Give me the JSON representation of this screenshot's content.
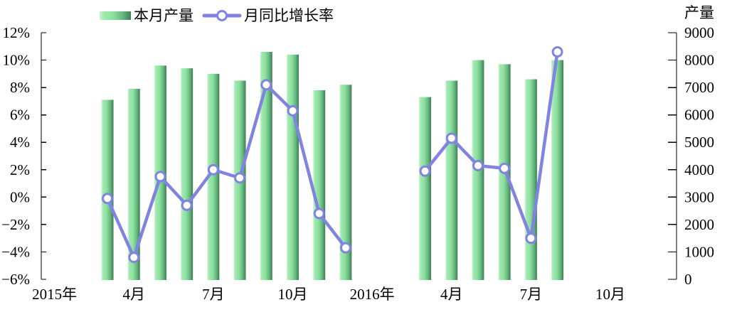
{
  "colors": {
    "bar_light": "#ccf2d2",
    "bar_mid_light": "#9fe9ae",
    "bar_mid": "#8ee1a0",
    "bar_mid_dark": "#68bb80",
    "bar_dark": "#3f7e56",
    "line": "#8183e2",
    "marker_fill": "#ffffff",
    "axis": "#000000",
    "text": "#000000"
  },
  "chart_data": {
    "type": "bar+line combo",
    "title": "",
    "legend": [
      {
        "label": "本月产量",
        "swatch": "bar-gradient"
      },
      {
        "label": "月同比增长率",
        "swatch": "line-marker"
      }
    ],
    "left_axis": {
      "min": -6,
      "max": 12,
      "step": 2,
      "unit": "%",
      "ticks": [
        {
          "label": "12%",
          "value": 12
        },
        {
          "label": "10%",
          "value": 10
        },
        {
          "label": "8%",
          "value": 8
        },
        {
          "label": "6%",
          "value": 6
        },
        {
          "label": "4%",
          "value": 4
        },
        {
          "label": "2%",
          "value": 2
        },
        {
          "label": "0%",
          "value": 0
        },
        {
          "label": "−2%",
          "value": -2
        },
        {
          "label": "−4%",
          "value": -4
        },
        {
          "label": "−6%",
          "value": -6
        }
      ]
    },
    "right_axis": {
      "title": "产量",
      "min": 0,
      "max": 9000,
      "step": 1000,
      "ticks": [
        {
          "label": "9000",
          "value": 9000
        },
        {
          "label": "8000",
          "value": 8000
        },
        {
          "label": "7000",
          "value": 7000
        },
        {
          "label": "6000",
          "value": 6000
        },
        {
          "label": "5000",
          "value": 5000
        },
        {
          "label": "4000",
          "value": 4000
        },
        {
          "label": "3000",
          "value": 3000
        },
        {
          "label": "2000",
          "value": 2000
        },
        {
          "label": "1000",
          "value": 1000
        },
        {
          "label": "0",
          "value": 0
        }
      ]
    },
    "x_axis": {
      "total_months": 24,
      "note": "month_index 0 = 2015年1月 slot, 23 = 2016年12月 slot",
      "ticks": [
        {
          "label": "2015年",
          "month_index": 0
        },
        {
          "label": "4月",
          "month_index": 3
        },
        {
          "label": "7月",
          "month_index": 6
        },
        {
          "label": "10月",
          "month_index": 9
        },
        {
          "label": "2016年",
          "month_index": 12
        },
        {
          "label": "4月",
          "month_index": 15
        },
        {
          "label": "7月",
          "month_index": 18
        },
        {
          "label": "10月",
          "month_index": 21
        }
      ]
    },
    "series": [
      {
        "name": "本月产量",
        "type": "bar",
        "axis": "right",
        "points": [
          {
            "month_index": 2,
            "value": 6550
          },
          {
            "month_index": 3,
            "value": 6950
          },
          {
            "month_index": 4,
            "value": 7800
          },
          {
            "month_index": 5,
            "value": 7700
          },
          {
            "month_index": 6,
            "value": 7500
          },
          {
            "month_index": 7,
            "value": 7250
          },
          {
            "month_index": 8,
            "value": 8300
          },
          {
            "month_index": 9,
            "value": 8200
          },
          {
            "month_index": 10,
            "value": 6900
          },
          {
            "month_index": 11,
            "value": 7100
          },
          {
            "month_index": 14,
            "value": 6650
          },
          {
            "month_index": 15,
            "value": 7250
          },
          {
            "month_index": 16,
            "value": 8000
          },
          {
            "month_index": 17,
            "value": 7850
          },
          {
            "month_index": 18,
            "value": 7300
          },
          {
            "month_index": 19,
            "value": 8000
          }
        ]
      },
      {
        "name": "月同比增长率",
        "type": "line",
        "axis": "left",
        "points": [
          {
            "month_index": 2,
            "value": -0.1
          },
          {
            "month_index": 3,
            "value": -4.4
          },
          {
            "month_index": 4,
            "value": 1.5
          },
          {
            "month_index": 5,
            "value": -0.6
          },
          {
            "month_index": 6,
            "value": 2.0
          },
          {
            "month_index": 7,
            "value": 1.4
          },
          {
            "month_index": 8,
            "value": 8.2
          },
          {
            "month_index": 9,
            "value": 6.3
          },
          {
            "month_index": 10,
            "value": -1.2
          },
          {
            "month_index": 11,
            "value": -3.7
          },
          {
            "month_index": 14,
            "value": 1.9
          },
          {
            "month_index": 15,
            "value": 4.3
          },
          {
            "month_index": 16,
            "value": 2.3
          },
          {
            "month_index": 17,
            "value": 2.1
          },
          {
            "month_index": 18,
            "value": -3.0
          },
          {
            "month_index": 19,
            "value": 10.6
          }
        ]
      }
    ]
  }
}
